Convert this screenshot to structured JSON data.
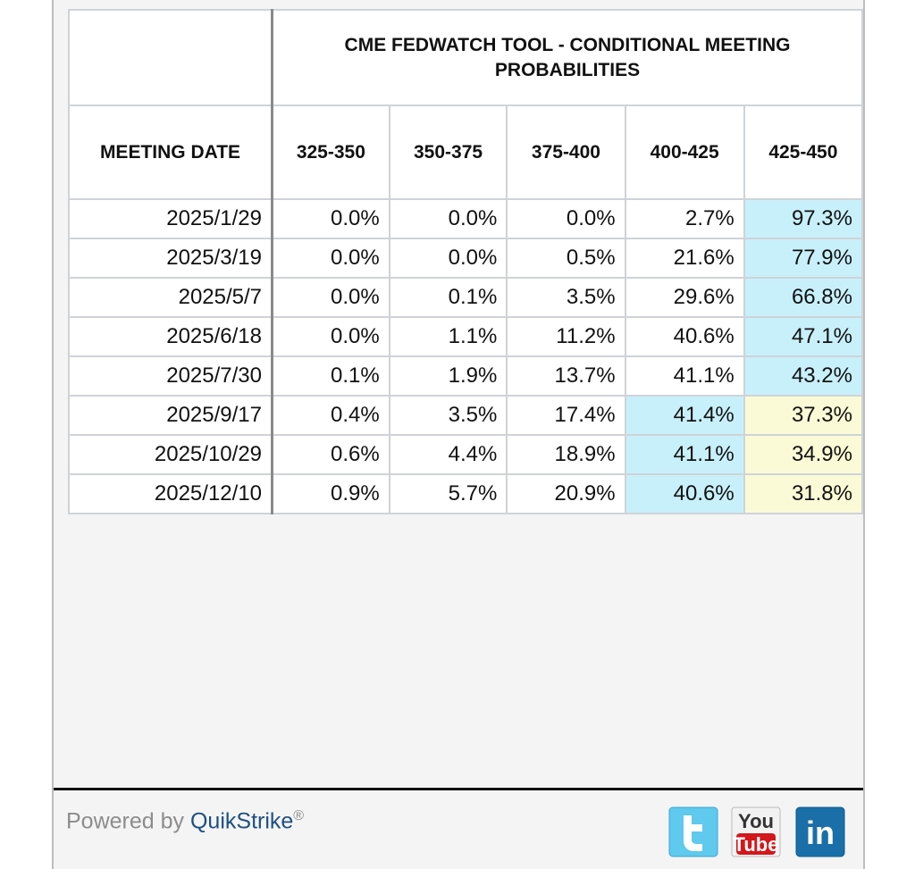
{
  "table": {
    "title": "CME FEDWATCH TOOL - CONDITIONAL MEETING PROBABILITIES",
    "columns": [
      "MEETING DATE",
      "325-350",
      "350-375",
      "375-400",
      "400-425",
      "425-450"
    ],
    "rows": [
      [
        "2025/1/29",
        "0.0%",
        "0.0%",
        "0.0%",
        "2.7%",
        "97.3%"
      ],
      [
        "2025/3/19",
        "0.0%",
        "0.0%",
        "0.5%",
        "21.6%",
        "77.9%"
      ],
      [
        "2025/5/7",
        "0.0%",
        "0.1%",
        "3.5%",
        "29.6%",
        "66.8%"
      ],
      [
        "2025/6/18",
        "0.0%",
        "1.1%",
        "11.2%",
        "40.6%",
        "47.1%"
      ],
      [
        "2025/7/30",
        "0.1%",
        "1.9%",
        "13.7%",
        "41.1%",
        "43.2%"
      ],
      [
        "2025/9/17",
        "0.4%",
        "3.5%",
        "17.4%",
        "41.4%",
        "37.3%"
      ],
      [
        "2025/10/29",
        "0.6%",
        "4.4%",
        "18.9%",
        "41.1%",
        "34.9%"
      ],
      [
        "2025/12/10",
        "0.9%",
        "5.7%",
        "20.9%",
        "40.6%",
        "31.8%"
      ]
    ]
  },
  "footer": {
    "powered_by": "Powered by",
    "brand": "QuikStrike",
    "mark": "®",
    "icons": {
      "youtube_top": "You",
      "youtube_bottom": "Tube",
      "linkedin": "in"
    }
  }
}
